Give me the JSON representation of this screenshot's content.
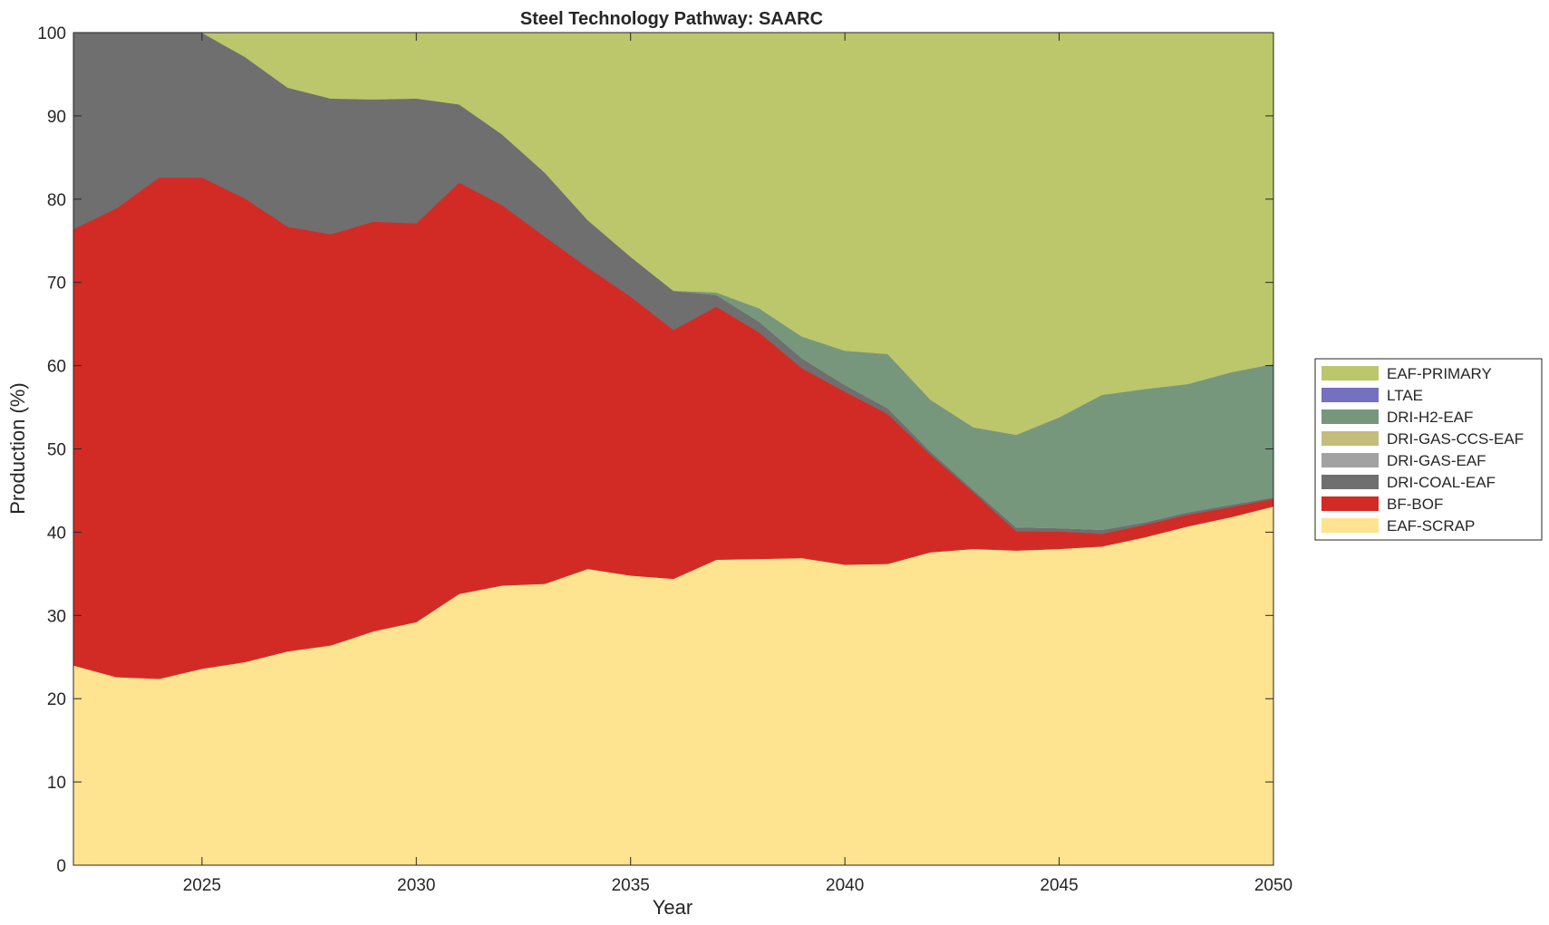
{
  "chart_data": {
    "type": "area",
    "stacked": true,
    "title": "Steel Technology Pathway: SAARC",
    "xlabel": "Year",
    "ylabel": "Production (%)",
    "xlim": [
      2022,
      2050
    ],
    "ylim": [
      0,
      100
    ],
    "xticks": [
      2025,
      2030,
      2035,
      2040,
      2045,
      2050
    ],
    "yticks": [
      0,
      10,
      20,
      30,
      40,
      50,
      60,
      70,
      80,
      90,
      100
    ],
    "grid": false,
    "legend_position": "right",
    "x": [
      2022,
      2023,
      2024,
      2025,
      2026,
      2027,
      2028,
      2029,
      2030,
      2031,
      2032,
      2033,
      2034,
      2035,
      2036,
      2037,
      2038,
      2039,
      2040,
      2041,
      2042,
      2043,
      2044,
      2045,
      2046,
      2047,
      2048,
      2049,
      2050
    ],
    "series": [
      {
        "name": "EAF-SCRAP",
        "color": "#fee391",
        "values": [
          24.0,
          22.6,
          22.4,
          23.6,
          24.4,
          25.7,
          26.4,
          28.1,
          29.2,
          32.6,
          33.6,
          33.8,
          35.6,
          34.8,
          34.4,
          36.7,
          36.8,
          36.9,
          36.1,
          36.2,
          37.6,
          38.0,
          37.8,
          38.0,
          38.3,
          39.4,
          40.7,
          41.8,
          43.1
        ]
      },
      {
        "name": "BF-BOF",
        "color": "#d22b25",
        "values": [
          52.4,
          56.3,
          60.2,
          59.0,
          55.7,
          51.0,
          49.4,
          49.2,
          47.9,
          49.4,
          45.7,
          41.7,
          36.2,
          33.5,
          29.9,
          30.4,
          27.2,
          22.8,
          20.8,
          18.0,
          11.7,
          6.8,
          2.3,
          2.1,
          1.5,
          1.5,
          1.4,
          1.2,
          0.9
        ]
      },
      {
        "name": "DRI-COAL-EAF",
        "color": "#6f6f6f",
        "values": [
          23.6,
          21.1,
          17.4,
          17.4,
          17.0,
          16.7,
          16.3,
          14.7,
          15.0,
          9.4,
          8.5,
          7.7,
          5.7,
          4.8,
          4.7,
          1.4,
          1.3,
          1.2,
          0.8,
          0.7,
          0.4,
          0.3,
          0.5,
          0.4,
          0.5,
          0.3,
          0.3,
          0.3,
          0.2
        ]
      },
      {
        "name": "DRI-GAS-EAF",
        "color": "#a2a2a2",
        "values": [
          0,
          0,
          0,
          0,
          0,
          0,
          0,
          0,
          0,
          0,
          0,
          0,
          0,
          0,
          0,
          0,
          0,
          0,
          0,
          0,
          0,
          0,
          0,
          0,
          0,
          0,
          0,
          0,
          0
        ]
      },
      {
        "name": "DRI-GAS-CCS-EAF",
        "color": "#c4bc7c",
        "values": [
          0,
          0,
          0,
          0,
          0,
          0,
          0,
          0,
          0,
          0,
          0,
          0,
          0,
          0,
          0,
          0,
          0,
          0,
          0,
          0,
          0,
          0,
          0,
          0,
          0,
          0,
          0,
          0,
          0
        ]
      },
      {
        "name": "DRI-H2-EAF",
        "color": "#76977c",
        "values": [
          0,
          0,
          0,
          0,
          0,
          0,
          0,
          0,
          0,
          0,
          0,
          0,
          0,
          0,
          0,
          0.3,
          1.6,
          2.6,
          4.1,
          6.5,
          6.2,
          7.5,
          11.1,
          13.3,
          16.2,
          16.0,
          15.4,
          15.9,
          16.0
        ]
      },
      {
        "name": "LTAE",
        "color": "#7570c0",
        "values": [
          0,
          0,
          0,
          0,
          0,
          0,
          0,
          0,
          0,
          0,
          0,
          0,
          0,
          0,
          0,
          0,
          0,
          0,
          0,
          0,
          0,
          0,
          0,
          0,
          0,
          0,
          0,
          0,
          0
        ]
      },
      {
        "name": "EAF-PRIMARY",
        "color": "#bcc76b",
        "values": [
          0,
          0,
          0,
          0,
          2.9,
          6.6,
          7.9,
          8.0,
          7.9,
          8.6,
          12.2,
          16.8,
          22.5,
          26.9,
          31.0,
          31.2,
          33.1,
          36.5,
          38.2,
          38.6,
          44.1,
          47.4,
          48.3,
          46.2,
          43.5,
          42.8,
          42.2,
          40.8,
          39.8
        ]
      }
    ],
    "legend_order": [
      "EAF-PRIMARY",
      "LTAE",
      "DRI-H2-EAF",
      "DRI-GAS-CCS-EAF",
      "DRI-GAS-EAF",
      "DRI-COAL-EAF",
      "BF-BOF",
      "EAF-SCRAP"
    ]
  }
}
